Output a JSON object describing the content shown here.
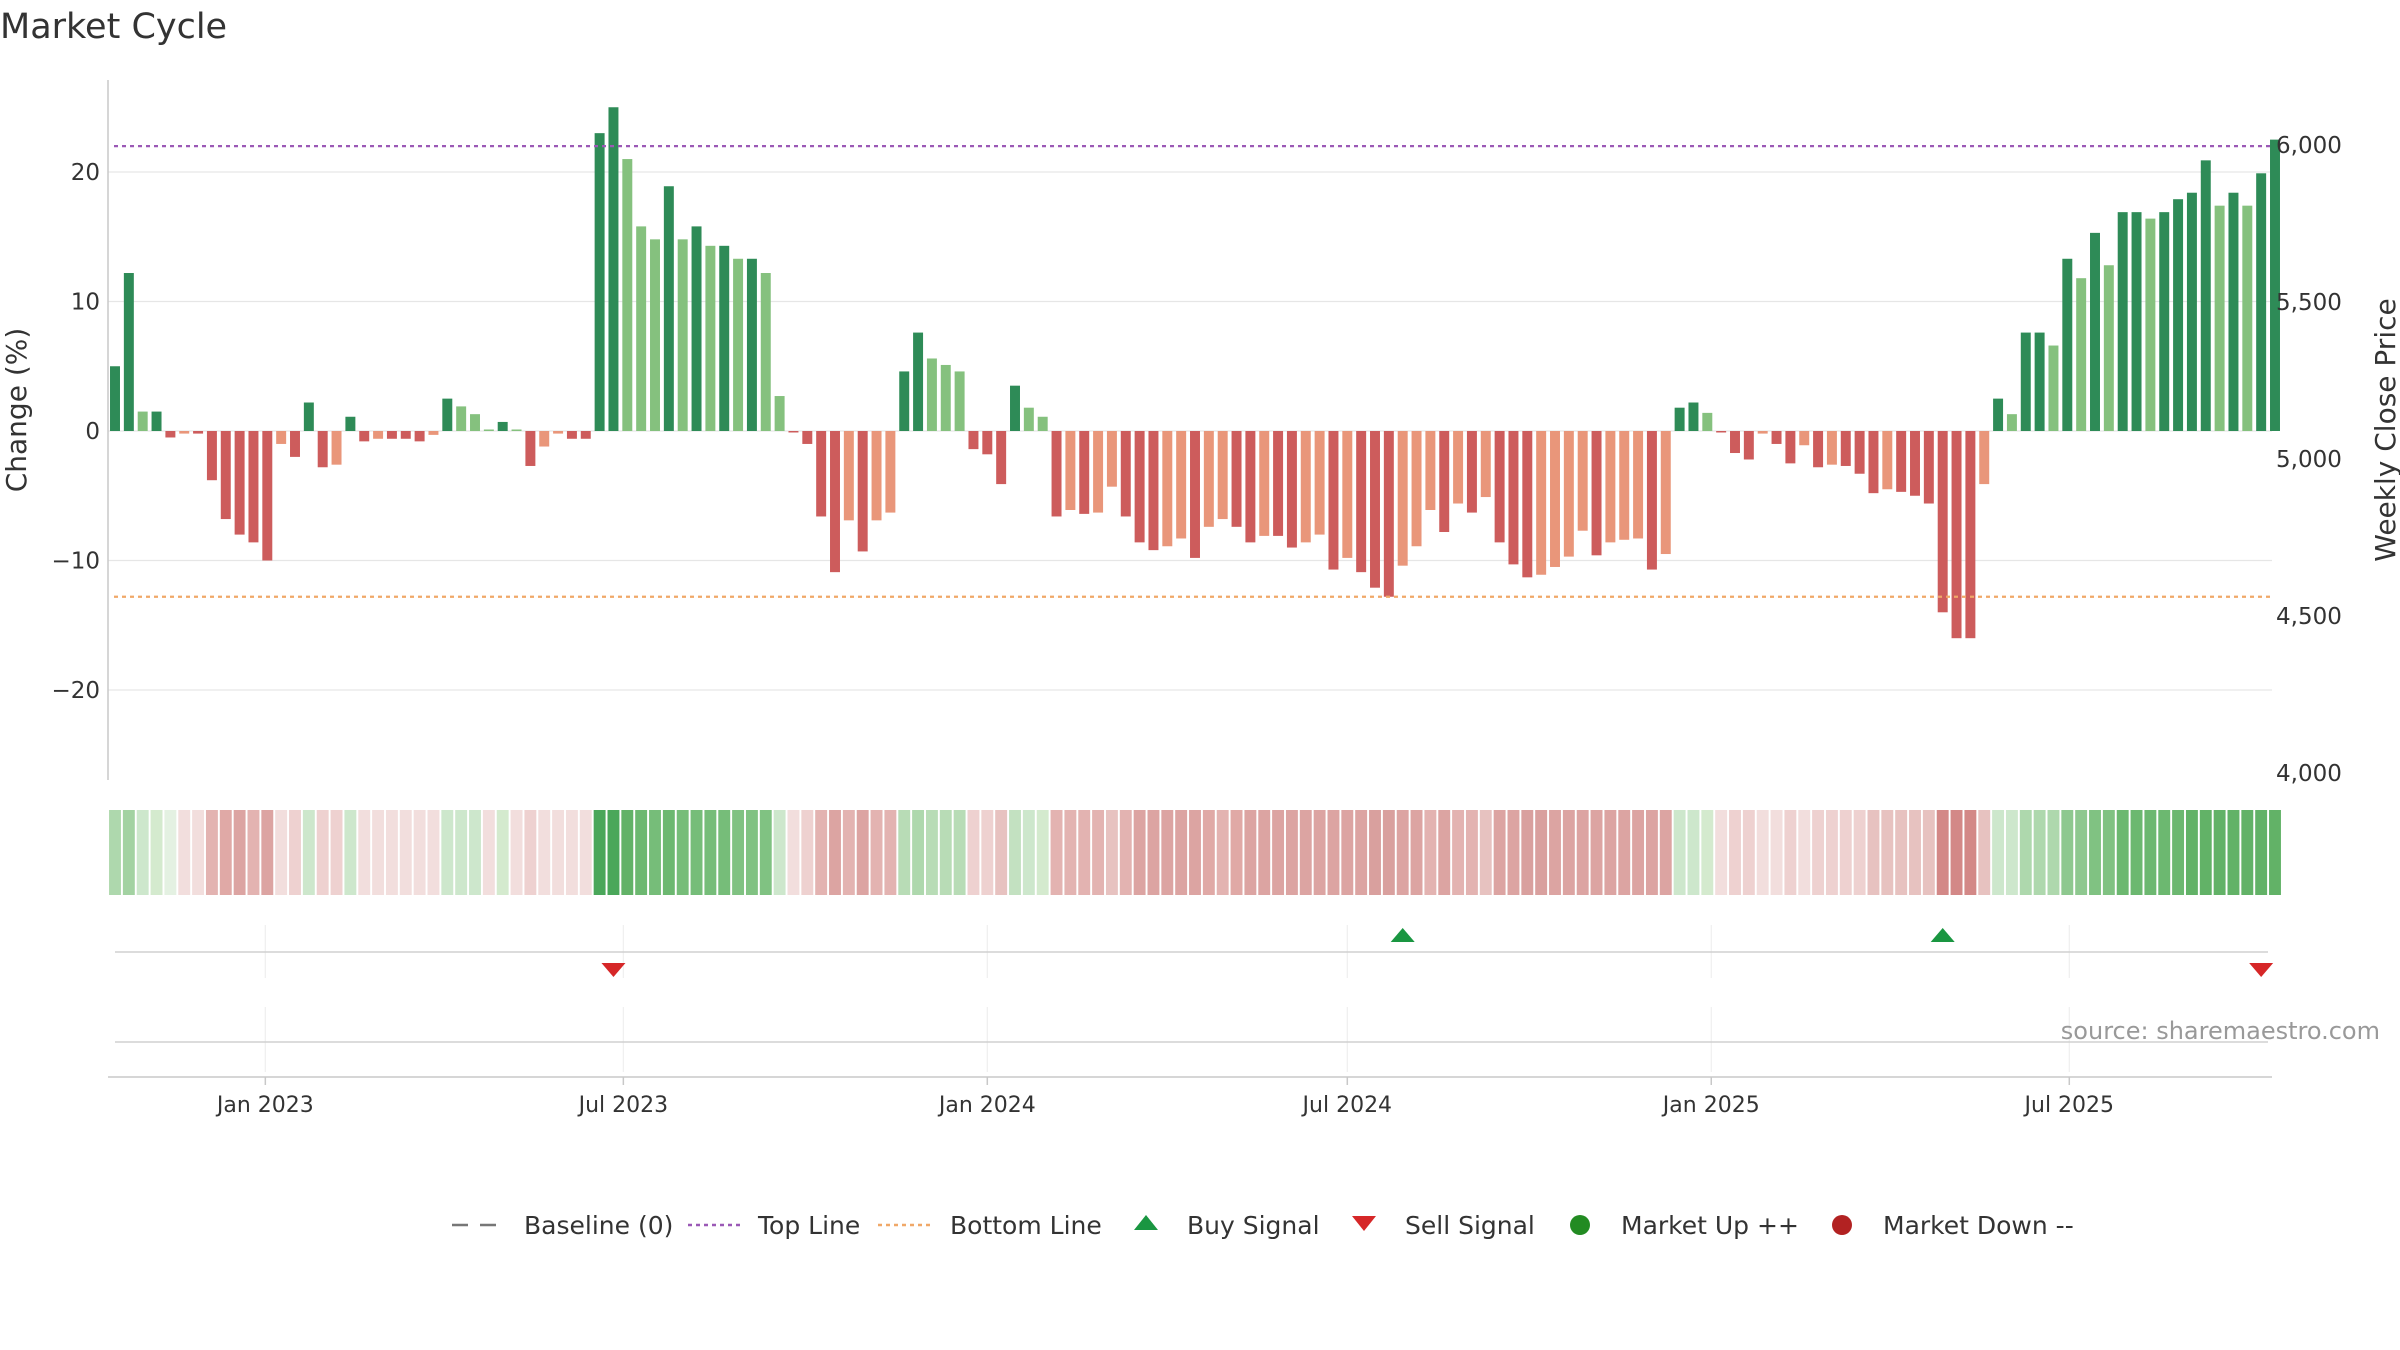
{
  "chart_data": {
    "type": "bar",
    "title": "Market Cycle",
    "source": "source: sharemaestro.com",
    "ylabel_left": "Change (%)",
    "ylabel_right": "Weekly Close Price",
    "left_axis": {
      "range": [
        -27,
        27
      ],
      "ticks": [
        20,
        10,
        0,
        -10,
        -20
      ],
      "tick_labels": [
        "20",
        "10",
        "0",
        "−10",
        "−20"
      ]
    },
    "right_axis": {
      "range": [
        4000,
        6000
      ],
      "ticks": [
        6000,
        5500,
        5000,
        4500,
        4000
      ],
      "tick_labels": [
        "6,000",
        "5,500",
        "5,000",
        "4,500",
        "4,000"
      ]
    },
    "top_line": 22,
    "bottom_line": -12.8,
    "x_start": "2022-10-17",
    "week_days": 7,
    "date_ticks": [
      {
        "label": "Jan 2023",
        "date": "2023-01-01"
      },
      {
        "label": "Jul 2023",
        "date": "2023-07-01"
      },
      {
        "label": "Jan 2024",
        "date": "2024-01-01"
      },
      {
        "label": "Jul 2024",
        "date": "2024-07-01"
      },
      {
        "label": "Jan 2025",
        "date": "2025-01-01"
      },
      {
        "label": "Jul 2025",
        "date": "2025-07-01"
      }
    ],
    "values": [
      5,
      12.2,
      1.5,
      1.5,
      -0.5,
      -0.2,
      -0.2,
      -3.8,
      -6.8,
      -8,
      -8.6,
      -10,
      -1,
      -2,
      2.2,
      -2.8,
      -2.6,
      1.1,
      -0.8,
      -0.6,
      -0.6,
      -0.6,
      -0.8,
      -0.3,
      2.5,
      1.9,
      1.3,
      0,
      0.7,
      0,
      -2.7,
      -1.2,
      -0.2,
      -0.6,
      -0.6,
      23,
      25,
      21,
      15.8,
      14.8,
      18.9,
      14.8,
      15.8,
      14.3,
      14.3,
      13.3,
      13.3,
      12.2,
      2.7,
      -0.1,
      -1,
      -6.6,
      -10.9,
      -6.9,
      -9.3,
      -6.9,
      -6.3,
      4.6,
      7.6,
      5.6,
      5.1,
      4.6,
      -1.4,
      -1.8,
      -4.1,
      3.5,
      1.8,
      1.1,
      -6.6,
      -6.1,
      -6.4,
      -6.3,
      -4.3,
      -6.6,
      -8.6,
      -9.2,
      -8.9,
      -8.3,
      -9.8,
      -7.4,
      -6.8,
      -7.4,
      -8.6,
      -8.1,
      -8.1,
      -9,
      -8.6,
      -8,
      -10.7,
      -9.8,
      -10.9,
      -12.1,
      -12.8,
      -10.4,
      -8.9,
      -6.1,
      -7.8,
      -5.6,
      -6.3,
      -5.1,
      -8.6,
      -10.3,
      -11.3,
      -11.1,
      -10.5,
      -9.7,
      -7.7,
      -9.6,
      -8.6,
      -8.4,
      -8.3,
      -10.7,
      -9.5,
      1.8,
      2.2,
      1.4,
      -0.1,
      -1.7,
      -2.2,
      -0.2,
      -1,
      -2.5,
      -1.1,
      -2.8,
      -2.6,
      -2.7,
      -3.3,
      -4.8,
      -4.5,
      -4.7,
      -5,
      -5.6,
      -14,
      -16,
      -16,
      -4.1,
      2.5,
      1.3,
      7.6,
      7.6,
      6.6,
      13.3,
      11.8,
      15.3,
      12.8,
      16.9,
      16.9,
      16.4,
      16.9,
      17.9,
      18.4,
      20.9,
      17.4,
      18.4,
      17.4,
      19.9,
      22.5
    ],
    "heat_strip": {
      "colors": [
        "#aed8ad",
        "#a3d2a2",
        "#cde7cc",
        "#d4eace",
        "#e4f1e2",
        "#f2dedd",
        "#f2dedd",
        "#e3b3b1",
        "#e0a9a6",
        "#dca4a2",
        "#e3b3b1",
        "#dca4a2",
        "#f2dedd",
        "#eed1d0",
        "#cde7cc",
        "#eed1d0",
        "#eed1d0",
        "#cde7cc",
        "#f2dedd",
        "#f2dedd",
        "#f2dedd",
        "#f2dedd",
        "#f2dedd",
        "#f2dedd",
        "#cde7cc",
        "#cde7cc",
        "#cde7cc",
        "#f2dedd",
        "#d4eace",
        "#f2dedd",
        "#eed1d0",
        "#f2dedd",
        "#f2dedd",
        "#f2dedd",
        "#f2dedd",
        "#4aa75a",
        "#4aa75a",
        "#62b267",
        "#6cb870",
        "#76bd79",
        "#6cb870",
        "#76bd79",
        "#76bd79",
        "#76bd79",
        "#76bd79",
        "#80c282",
        "#80c282",
        "#80c282",
        "#cde7cc",
        "#f2dedd",
        "#eed1d0",
        "#e3b3b1",
        "#dca4a2",
        "#e3b3b1",
        "#dca4a2",
        "#e3b3b1",
        "#e3b3b1",
        "#b8dcb6",
        "#aed8ad",
        "#b8dcb6",
        "#b8dcb6",
        "#b8dcb6",
        "#eed1d0",
        "#eed1d0",
        "#e7c2c0",
        "#c3e1c1",
        "#cde7cc",
        "#d4eace",
        "#e3b3b1",
        "#e3b3b1",
        "#e3b3b1",
        "#e3b3b1",
        "#e7c2c0",
        "#e3b3b1",
        "#dca4a2",
        "#dca4a2",
        "#dca4a2",
        "#dca4a2",
        "#dca4a2",
        "#e0a9a6",
        "#e3b3b1",
        "#e0a9a6",
        "#dca4a2",
        "#dca4a2",
        "#dca4a2",
        "#dca4a2",
        "#dca4a2",
        "#dca4a2",
        "#dca4a2",
        "#dca4a2",
        "#dca4a2",
        "#d9a09e",
        "#d9a09e",
        "#dca4a2",
        "#dca4a2",
        "#e3b3b1",
        "#dca4a2",
        "#e3b3b1",
        "#e3b3b1",
        "#e7c2c0",
        "#dca4a2",
        "#dca4a2",
        "#d9a09e",
        "#d9a09e",
        "#dca4a2",
        "#dca4a2",
        "#dca4a2",
        "#dca4a2",
        "#dca4a2",
        "#dca4a2",
        "#dca4a2",
        "#dca4a2",
        "#dca4a2",
        "#cde7cc",
        "#cde7cc",
        "#d4eace",
        "#f2dedd",
        "#eed1d0",
        "#eed1d0",
        "#f2dedd",
        "#f2dedd",
        "#eed1d0",
        "#f2dedd",
        "#eed1d0",
        "#eed1d0",
        "#eed1d0",
        "#eed1d0",
        "#e7c2c0",
        "#e7c2c0",
        "#e7c2c0",
        "#e7c2c0",
        "#e7c2c0",
        "#d38887",
        "#d38887",
        "#d38887",
        "#e7c2c0",
        "#cde7cc",
        "#cde7cc",
        "#aed8ad",
        "#aed8ad",
        "#aed8ad",
        "#8ec88f",
        "#8ec88f",
        "#80c282",
        "#80c282",
        "#6cb870",
        "#6cb870",
        "#6cb870",
        "#6cb870",
        "#6cb870",
        "#62b267",
        "#62b267",
        "#62b267",
        "#62b267",
        "#62b267",
        "#62b267",
        "#62b267"
      ]
    },
    "signals": [
      {
        "type": "sell",
        "week": 36
      },
      {
        "type": "buy",
        "week": 93
      },
      {
        "type": "buy",
        "week": 132
      },
      {
        "type": "sell",
        "week": 155
      }
    ],
    "legend": [
      {
        "kind": "baseline",
        "label": "Baseline (0)"
      },
      {
        "kind": "topline",
        "label": "Top Line"
      },
      {
        "kind": "bottomline",
        "label": "Bottom Line"
      },
      {
        "kind": "buy",
        "label": "Buy Signal"
      },
      {
        "kind": "sell",
        "label": "Sell Signal"
      },
      {
        "kind": "marketup",
        "label": "Market Up ++"
      },
      {
        "kind": "marketdown",
        "label": "Market Down --"
      }
    ],
    "colors": {
      "pos_strong": "#2e8b57",
      "pos_weak": "#85c17e",
      "neg_strong": "#cd5c5c",
      "neg_weak": "#e9967a",
      "top_line": "#9b59b6",
      "bottom_line": "#f0a868",
      "buy": "#1a9641",
      "sell": "#d62728",
      "market_up": "#228b22",
      "market_down": "#b22222",
      "baseline": "#777777",
      "grid": "#e6e6e6",
      "axis": "#c8c8c8"
    },
    "grid": true,
    "legend_position": "bottom"
  }
}
